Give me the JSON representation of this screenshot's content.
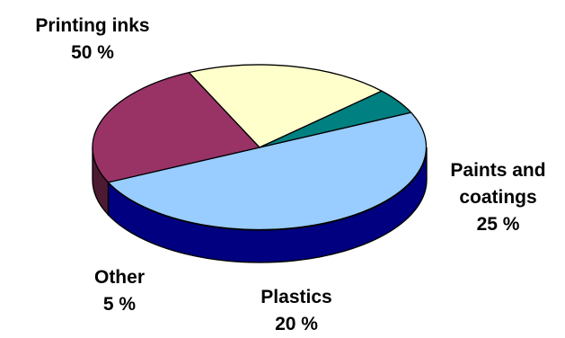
{
  "chart_data": {
    "type": "pie",
    "title": "",
    "unit": "%",
    "categories": [
      "Printing inks",
      "Paints and coatings",
      "Plastics",
      "Other"
    ],
    "values": [
      50,
      25,
      20,
      5
    ],
    "colors": {
      "top": [
        "#99CCFF",
        "#993366",
        "#FFFFCC",
        "#008080"
      ],
      "side": [
        "#000080",
        "#4D1A33",
        "#808066",
        "#003300"
      ],
      "edge": "#000000"
    },
    "labels": [
      {
        "lines": [
          "Printing inks"
        ],
        "value_text": "50 %"
      },
      {
        "lines": [
          "Paints and",
          "coatings"
        ],
        "value_text": "25 %"
      },
      {
        "lines": [
          "Plastics"
        ],
        "value_text": "20 %"
      },
      {
        "lines": [
          "Other"
        ],
        "value_text": "5 %"
      }
    ]
  }
}
